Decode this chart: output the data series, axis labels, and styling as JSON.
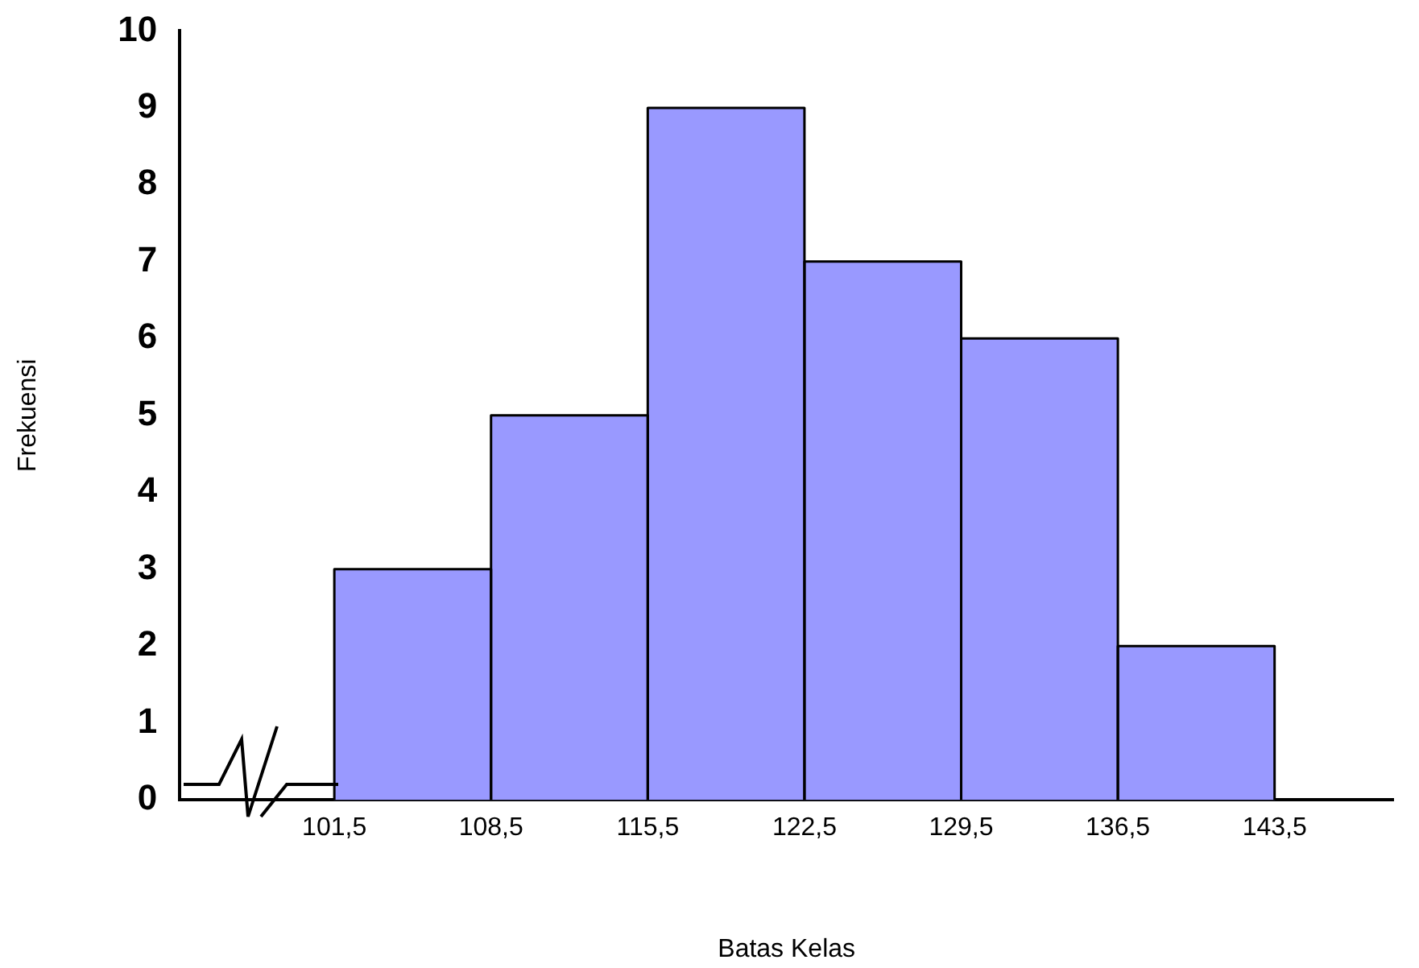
{
  "chart_data": {
    "type": "histogram",
    "xlabel": "Batas Kelas",
    "ylabel": "Frekuensi",
    "bins": [
      101.5,
      108.5,
      115.5,
      122.5,
      129.5,
      136.5,
      143.5
    ],
    "values": [
      3,
      5,
      9,
      7,
      6,
      2
    ],
    "color": "#9999ff",
    "xlim": [
      94.6,
      148.8
    ],
    "xticks": [
      {
        "value": 101.5,
        "label": "101,5"
      },
      {
        "value": 108.5,
        "label": "108,5"
      },
      {
        "value": 115.5,
        "label": "115,5"
      },
      {
        "value": 122.5,
        "label": "122,5"
      },
      {
        "value": 129.5,
        "label": "129,5"
      },
      {
        "value": 136.5,
        "label": "136,5"
      },
      {
        "value": 143.5,
        "label": "143,5"
      }
    ],
    "ylim": [
      0,
      10
    ],
    "yticks": [
      0,
      1,
      2,
      3,
      4,
      5,
      6,
      7,
      8,
      9,
      10
    ],
    "grid": false,
    "legend": false
  }
}
